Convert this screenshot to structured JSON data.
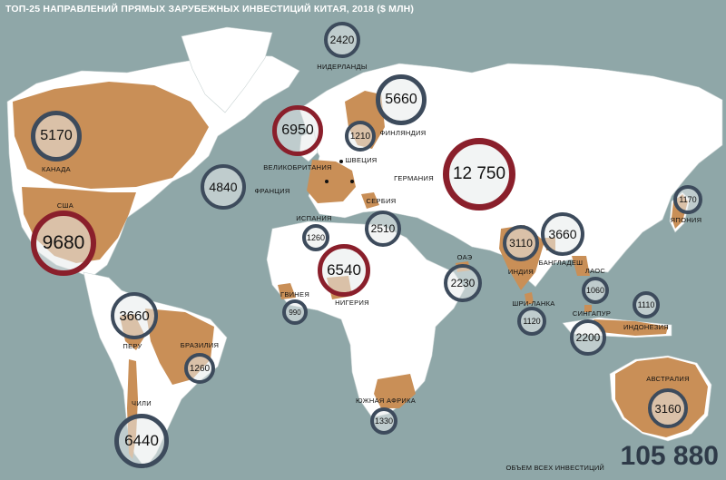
{
  "title": "ТОП-25 НАПРАВЛЕНИЙ ПРЯМЫХ ЗАРУБЕЖНЫХ ИНВЕСТИЦИЙ КИТАЯ, 2018 ($ МЛН)",
  "colors": {
    "ocean": "#8fa7a8",
    "land": "#ffffff",
    "highlight": "#c98f57",
    "ring_blue": "#3d4b5c",
    "ring_red": "#8a1f2b"
  },
  "investments": [
    {
      "id": "canada",
      "country": "КАНАДА",
      "value": "5170",
      "ring": "blue"
    },
    {
      "id": "usa",
      "country": "США",
      "value": "9680",
      "ring": "red"
    },
    {
      "id": "peru",
      "country": "ПЕРУ",
      "value": "3660",
      "ring": "blue"
    },
    {
      "id": "brazil",
      "country": "БРАЗИЛИЯ",
      "value": "1260",
      "ring": "blue"
    },
    {
      "id": "chile",
      "country": "ЧИЛИ",
      "value": "6440",
      "ring": "blue"
    },
    {
      "id": "netherlands",
      "country": "НИДЕРЛАНДЫ",
      "value": "2420",
      "ring": "blue"
    },
    {
      "id": "uk",
      "country": "ВЕЛИКОБРИТАНИЯ",
      "value": "6950",
      "ring": "red"
    },
    {
      "id": "france",
      "country": "ФРАНЦИЯ",
      "value": "4840",
      "ring": "blue"
    },
    {
      "id": "sweden",
      "country": "ШВЕЦИЯ",
      "value": "1210",
      "ring": "blue"
    },
    {
      "id": "finland",
      "country": "ФИНЛЯНДИЯ",
      "value": "5660",
      "ring": "blue"
    },
    {
      "id": "germany",
      "country": "ГЕРМАНИЯ",
      "value": "12 750",
      "ring": "red"
    },
    {
      "id": "spain",
      "country": "ИСПАНИЯ",
      "value": "1260",
      "ring": "blue"
    },
    {
      "id": "serbia",
      "country": "СЕРБИЯ",
      "value": "2510",
      "ring": "blue"
    },
    {
      "id": "nigeria",
      "country": "НИГЕРИЯ",
      "value": "6540",
      "ring": "red"
    },
    {
      "id": "guinea",
      "country": "ГВИНЕЯ",
      "value": "990",
      "ring": "blue"
    },
    {
      "id": "uae",
      "country": "ОАЭ",
      "value": "2230",
      "ring": "blue"
    },
    {
      "id": "south-africa",
      "country": "ЮЖНАЯ АФРИКА",
      "value": "1330",
      "ring": "blue"
    },
    {
      "id": "india",
      "country": "ИНДИЯ",
      "value": "3110",
      "ring": "blue"
    },
    {
      "id": "bangladesh",
      "country": "БАНГЛАДЕШ",
      "value": "3660",
      "ring": "blue"
    },
    {
      "id": "sri-lanka",
      "country": "ШРИ-ЛАНКА",
      "value": "1120",
      "ring": "blue"
    },
    {
      "id": "laos",
      "country": "ЛАОС",
      "value": "1060",
      "ring": "blue"
    },
    {
      "id": "singapore",
      "country": "СИНГАПУР",
      "value": "2200",
      "ring": "blue"
    },
    {
      "id": "indonesia",
      "country": "ИНДОНЕЗИЯ",
      "value": "1110",
      "ring": "blue"
    },
    {
      "id": "japan",
      "country": "ЯПОНИЯ",
      "value": "1170",
      "ring": "blue"
    },
    {
      "id": "australia",
      "country": "АВСТРАЛИЯ",
      "value": "3160",
      "ring": "blue"
    }
  ],
  "footer": {
    "label": "ОБЪЕМ ВСЕХ ИНВЕСТИЦИЙ",
    "total": "105 880"
  }
}
